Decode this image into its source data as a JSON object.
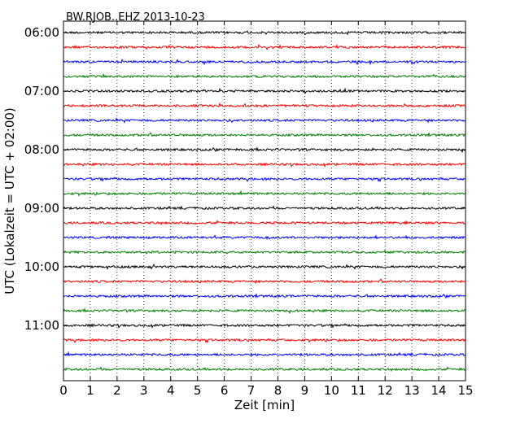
{
  "chart_data": {
    "type": "line",
    "title": "BW.RJOB..EHZ 2013-10-23",
    "xlabel": "Zeit  [min]",
    "ylabel": "UTC (Lokalzeit = UTC + 02:00)",
    "xlim": [
      0,
      15
    ],
    "xticks": [
      0,
      1,
      2,
      3,
      4,
      5,
      6,
      7,
      8,
      9,
      10,
      11,
      12,
      13,
      14,
      15
    ],
    "start_time": "06:00",
    "trace_minutes": 15,
    "trace_count": 24,
    "yticks": [
      "06:00",
      "07:00",
      "08:00",
      "09:00",
      "10:00",
      "11:00"
    ],
    "grid": "vertical dotted at each minute",
    "trace_colors": [
      "#000000",
      "#ff0000",
      "#0000ff",
      "#008000"
    ]
  }
}
